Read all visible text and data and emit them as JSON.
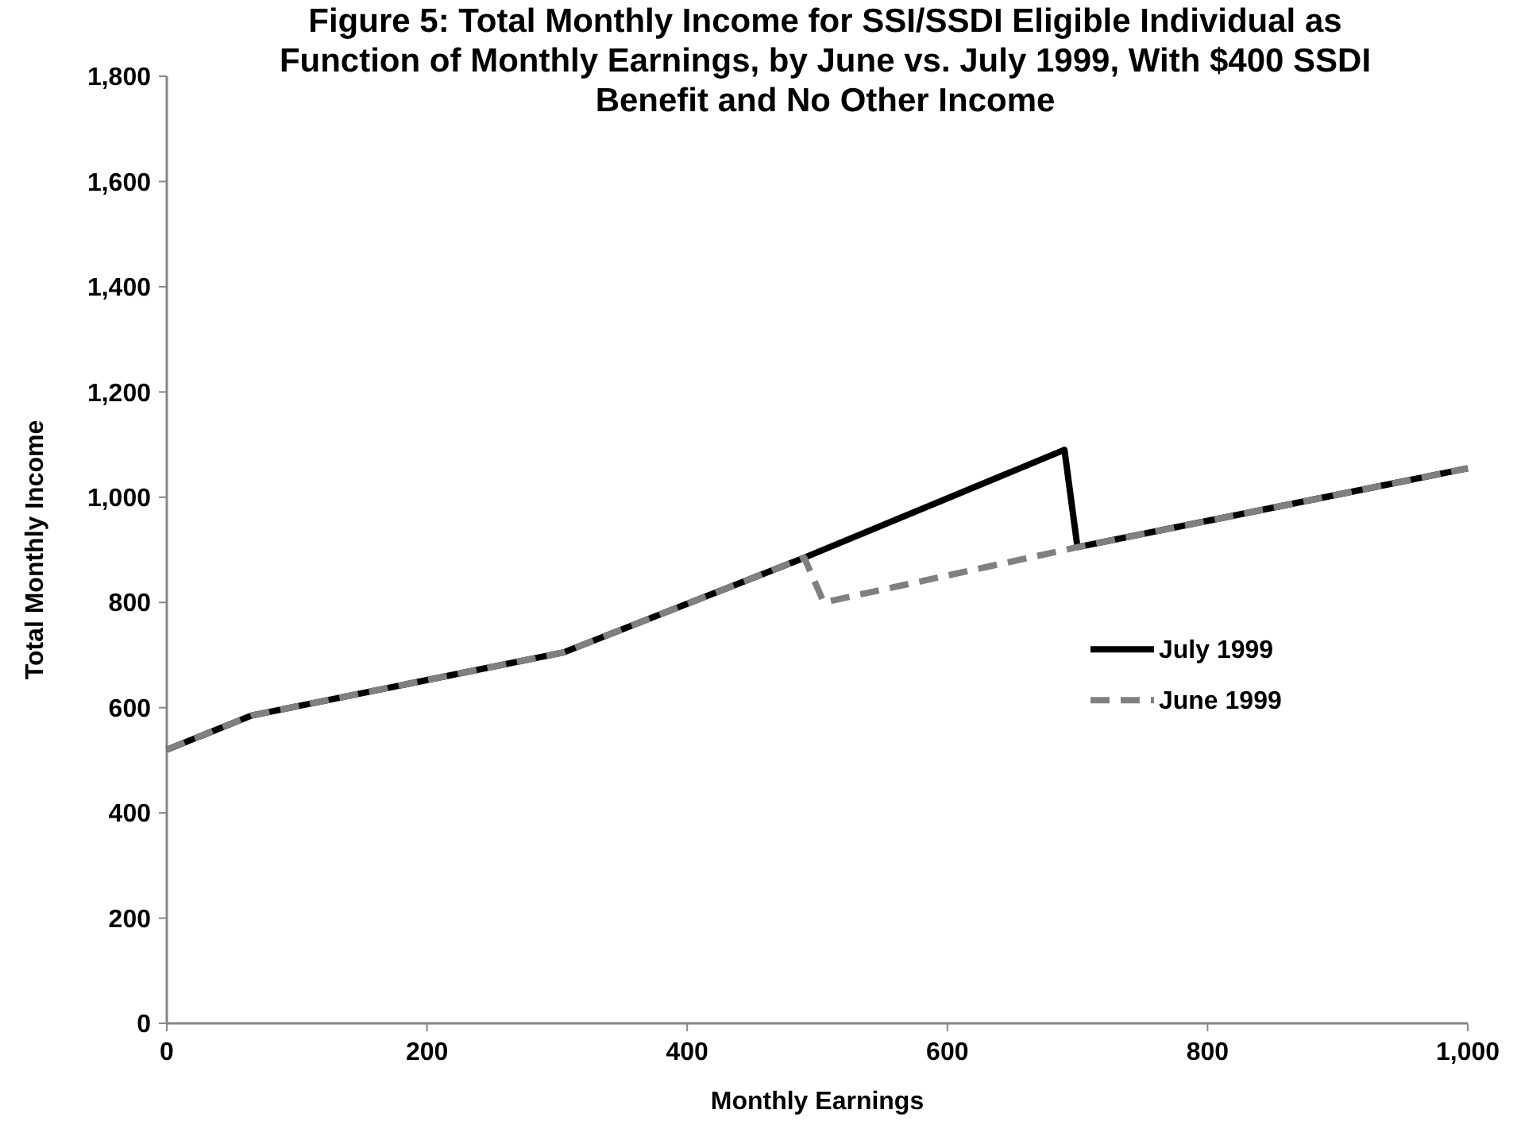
{
  "chart_data": {
    "type": "line",
    "title": "Figure 5: Total Monthly Income for SSI/SSDI Eligible Individual as Function of Monthly Earnings, by June vs. July 1999, With $400 SSDI Benefit and No Other Income",
    "xlabel": "Monthly Earnings",
    "ylabel": "Total Monthly Income",
    "xlim": [
      0,
      1000
    ],
    "xticks": [
      0,
      200,
      400,
      600,
      800,
      {
        "value": 1000,
        "label": "1,000"
      }
    ],
    "ylim": [
      0,
      1800
    ],
    "yticks": [
      0,
      200,
      400,
      600,
      800,
      {
        "value": 1000,
        "label": "1,000"
      },
      {
        "value": 1200,
        "label": "1,200"
      },
      {
        "value": 1400,
        "label": "1,400"
      },
      {
        "value": 1600,
        "label": "1,600"
      },
      {
        "value": 1800,
        "label": "1,800"
      }
    ],
    "grid": false,
    "legend": "right",
    "series": [
      {
        "name": "July 1999",
        "color": "#000000",
        "line_style": "solid",
        "x": [
          0,
          65,
          305,
          490,
          690,
          700,
          1000
        ],
        "values": [
          520,
          585,
          705,
          885,
          1090,
          905,
          1055
        ]
      },
      {
        "name": "June 1999",
        "color": "#808080",
        "line_style": "dashed",
        "x": [
          0,
          65,
          305,
          490,
          505,
          700,
          1000
        ],
        "values": [
          520,
          585,
          705,
          885,
          800,
          905,
          1055
        ]
      }
    ]
  }
}
